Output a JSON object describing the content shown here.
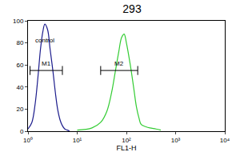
{
  "chart_data": {
    "type": "line",
    "title": "293",
    "x_label": "FL1-H",
    "log": "x",
    "grid": false,
    "xlim": [
      1,
      10000
    ],
    "xticks": [
      {
        "value": 1,
        "label": "10⁰"
      },
      {
        "value": 10,
        "label": "10¹"
      },
      {
        "value": 100,
        "label": "10²"
      },
      {
        "value": 1000,
        "label": "10³"
      },
      {
        "value": 10000,
        "label": "10⁴"
      }
    ],
    "ylim": [
      0,
      100
    ],
    "yticks": [
      0,
      20,
      40,
      60,
      80,
      100
    ],
    "series": [
      {
        "color": "#1c1c8c",
        "x": [
          1,
          1.2,
          1.4,
          1.6,
          1.8,
          2,
          2.2,
          2.5,
          2.8,
          3.2,
          3.6,
          4,
          4.5,
          5,
          5.6,
          6.3,
          7
        ],
        "values": [
          2,
          8,
          25,
          50,
          75,
          90,
          97,
          92,
          75,
          55,
          35,
          20,
          10,
          5,
          2,
          1,
          0
        ]
      },
      {
        "color": "#33cc33",
        "x": [
          10,
          20,
          30,
          40,
          50,
          60,
          70,
          80,
          90,
          100,
          120,
          140,
          160,
          180,
          200,
          250,
          300,
          400,
          500
        ],
        "values": [
          1,
          3,
          8,
          18,
          35,
          55,
          72,
          85,
          88,
          80,
          60,
          40,
          22,
          12,
          6,
          4,
          3,
          2,
          1
        ]
      }
    ],
    "gates": [
      {
        "name": "M1",
        "range": [
          1.1,
          5
        ],
        "y": 55
      },
      {
        "name": "M2",
        "range": [
          30,
          170
        ],
        "y": 55
      }
    ],
    "annotations": [
      {
        "text": "control",
        "x": 2.2,
        "y": 82
      }
    ]
  }
}
